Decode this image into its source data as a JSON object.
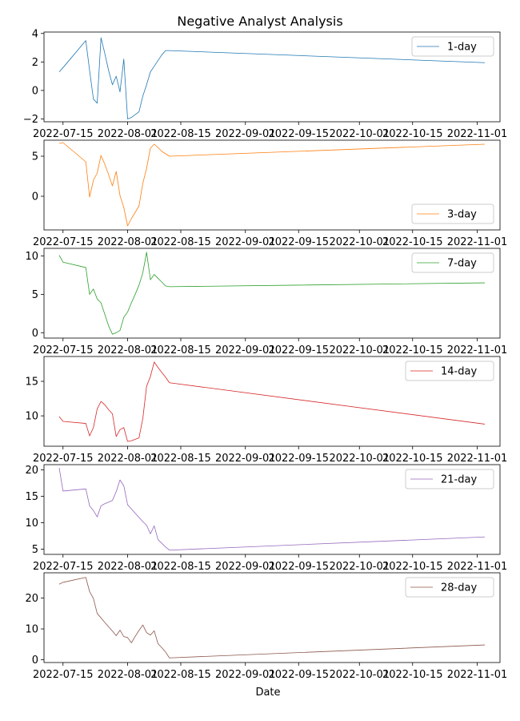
{
  "figure": {
    "title": "Negative Analyst Analysis",
    "xlabel": "Date"
  },
  "chart_data": [
    {
      "type": "line",
      "series": [
        {
          "name": "1-day",
          "color": "#1f77b4",
          "x": [
            "2022-07-14",
            "2022-07-15",
            "2022-07-21",
            "2022-07-22",
            "2022-07-23",
            "2022-07-24",
            "2022-07-25",
            "2022-07-26",
            "2022-07-27",
            "2022-07-28",
            "2022-07-29",
            "2022-07-30",
            "2022-07-31",
            "2022-08-01",
            "2022-08-02",
            "2022-08-03",
            "2022-08-04",
            "2022-08-05",
            "2022-08-06",
            "2022-08-07",
            "2022-08-08",
            "2022-08-09",
            "2022-08-10",
            "2022-08-11",
            "2022-08-12",
            "2022-11-03"
          ],
          "y": [
            1.3,
            1.6,
            3.5,
            1.4,
            -0.6,
            -0.9,
            3.7,
            2.6,
            1.4,
            0.4,
            1.0,
            -0.1,
            2.2,
            -2.0,
            -1.9,
            -1.7,
            -1.5,
            -0.4,
            0.4,
            1.3,
            1.7,
            2.1,
            2.5,
            2.8,
            2.8,
            1.95
          ]
        }
      ],
      "xticks": [
        "2022-07-15",
        "2022-08-01",
        "2022-08-15",
        "2022-09-01",
        "2022-09-15",
        "2022-10-01",
        "2022-10-15",
        "2022-11-01"
      ],
      "yticks": [
        -2,
        0,
        2,
        4
      ],
      "ylim": [
        -2.2,
        4.1
      ],
      "legend": "upper right"
    },
    {
      "type": "line",
      "series": [
        {
          "name": "3-day",
          "color": "#ff7f0e",
          "x": [
            "2022-07-14",
            "2022-07-15",
            "2022-07-21",
            "2022-07-22",
            "2022-07-23",
            "2022-07-24",
            "2022-07-25",
            "2022-07-26",
            "2022-07-27",
            "2022-07-28",
            "2022-07-29",
            "2022-07-30",
            "2022-07-31",
            "2022-08-01",
            "2022-08-02",
            "2022-08-03",
            "2022-08-04",
            "2022-08-05",
            "2022-08-06",
            "2022-08-07",
            "2022-08-08",
            "2022-08-09",
            "2022-08-10",
            "2022-08-11",
            "2022-08-12",
            "2022-11-03"
          ],
          "y": [
            6.6,
            6.7,
            4.3,
            -0.1,
            2.0,
            2.9,
            5.1,
            4.0,
            2.7,
            1.3,
            3.1,
            0.1,
            -1.4,
            -3.7,
            -2.8,
            -2.0,
            -1.2,
            1.6,
            3.5,
            6.0,
            6.5,
            6.1,
            5.6,
            5.3,
            5.0,
            6.5
          ]
        }
      ],
      "xticks": [
        "2022-07-15",
        "2022-08-01",
        "2022-08-15",
        "2022-09-01",
        "2022-09-15",
        "2022-10-01",
        "2022-10-15",
        "2022-11-01"
      ],
      "yticks": [
        0,
        5
      ],
      "ylim": [
        -4.2,
        7.0
      ],
      "legend": "lower right"
    },
    {
      "type": "line",
      "series": [
        {
          "name": "7-day",
          "color": "#2ca02c",
          "x": [
            "2022-07-14",
            "2022-07-15",
            "2022-07-21",
            "2022-07-22",
            "2022-07-23",
            "2022-07-24",
            "2022-07-25",
            "2022-07-26",
            "2022-07-27",
            "2022-07-28",
            "2022-07-29",
            "2022-07-30",
            "2022-07-31",
            "2022-08-01",
            "2022-08-02",
            "2022-08-03",
            "2022-08-04",
            "2022-08-05",
            "2022-08-06",
            "2022-08-07",
            "2022-08-08",
            "2022-08-09",
            "2022-08-10",
            "2022-08-11",
            "2022-08-12",
            "2022-11-03"
          ],
          "y": [
            10.1,
            9.2,
            8.5,
            5.0,
            5.7,
            4.4,
            3.9,
            2.4,
            0.9,
            -0.2,
            0.0,
            0.3,
            2.0,
            2.7,
            3.9,
            5.0,
            6.2,
            7.8,
            10.5,
            6.9,
            7.6,
            7.1,
            6.6,
            6.1,
            6.0,
            6.5
          ]
        }
      ],
      "xticks": [
        "2022-07-15",
        "2022-08-01",
        "2022-08-15",
        "2022-09-01",
        "2022-09-15",
        "2022-10-01",
        "2022-10-15",
        "2022-11-01"
      ],
      "yticks": [
        0,
        5,
        10
      ],
      "ylim": [
        -0.7,
        11.0
      ],
      "legend": "upper right"
    },
    {
      "type": "line",
      "series": [
        {
          "name": "14-day",
          "color": "#d62728",
          "x": [
            "2022-07-14",
            "2022-07-15",
            "2022-07-21",
            "2022-07-22",
            "2022-07-23",
            "2022-07-24",
            "2022-07-25",
            "2022-07-26",
            "2022-07-27",
            "2022-07-28",
            "2022-07-29",
            "2022-07-30",
            "2022-07-31",
            "2022-08-01",
            "2022-08-02",
            "2022-08-03",
            "2022-08-04",
            "2022-08-05",
            "2022-08-06",
            "2022-08-07",
            "2022-08-08",
            "2022-08-09",
            "2022-08-10",
            "2022-08-11",
            "2022-08-12",
            "2022-11-03"
          ],
          "y": [
            9.9,
            9.2,
            8.9,
            7.1,
            8.3,
            11.0,
            12.1,
            11.6,
            10.9,
            10.3,
            7.0,
            8.0,
            8.3,
            6.3,
            6.4,
            6.6,
            6.8,
            9.6,
            14.3,
            15.7,
            17.8,
            17.0,
            16.3,
            15.6,
            14.8,
            8.8
          ]
        }
      ],
      "xticks": [
        "2022-07-15",
        "2022-08-01",
        "2022-08-15",
        "2022-09-01",
        "2022-09-15",
        "2022-10-01",
        "2022-10-15",
        "2022-11-01"
      ],
      "yticks": [
        10,
        15
      ],
      "ylim": [
        5.6,
        18.6
      ],
      "legend": "upper right"
    },
    {
      "type": "line",
      "series": [
        {
          "name": "21-day",
          "color": "#9467bd",
          "x": [
            "2022-07-14",
            "2022-07-15",
            "2022-07-21",
            "2022-07-22",
            "2022-07-23",
            "2022-07-24",
            "2022-07-25",
            "2022-07-26",
            "2022-07-27",
            "2022-07-28",
            "2022-07-29",
            "2022-07-30",
            "2022-07-31",
            "2022-08-01",
            "2022-08-02",
            "2022-08-03",
            "2022-08-04",
            "2022-08-05",
            "2022-08-06",
            "2022-08-07",
            "2022-08-08",
            "2022-08-09",
            "2022-08-10",
            "2022-08-11",
            "2022-08-12",
            "2022-11-03"
          ],
          "y": [
            20.4,
            16.0,
            16.4,
            13.2,
            12.3,
            11.1,
            13.2,
            13.6,
            13.9,
            14.2,
            15.9,
            18.1,
            17.0,
            13.4,
            12.6,
            11.8,
            11.0,
            10.2,
            9.5,
            7.9,
            9.4,
            6.8,
            6.1,
            5.4,
            4.8,
            7.3
          ]
        }
      ],
      "xticks": [
        "2022-07-15",
        "2022-08-01",
        "2022-08-15",
        "2022-09-01",
        "2022-09-15",
        "2022-10-01",
        "2022-10-15",
        "2022-11-01"
      ],
      "yticks": [
        5,
        10,
        15,
        20
      ],
      "ylim": [
        4.0,
        21.0
      ],
      "legend": "upper right"
    },
    {
      "type": "line",
      "series": [
        {
          "name": "28-day",
          "color": "#8c564b",
          "x": [
            "2022-07-14",
            "2022-07-15",
            "2022-07-21",
            "2022-07-22",
            "2022-07-23",
            "2022-07-24",
            "2022-07-25",
            "2022-07-26",
            "2022-07-27",
            "2022-07-28",
            "2022-07-29",
            "2022-07-30",
            "2022-07-31",
            "2022-08-01",
            "2022-08-02",
            "2022-08-03",
            "2022-08-04",
            "2022-08-05",
            "2022-08-06",
            "2022-08-07",
            "2022-08-08",
            "2022-08-09",
            "2022-08-10",
            "2022-08-11",
            "2022-08-12",
            "2022-11-03"
          ],
          "y": [
            24.5,
            25.1,
            26.7,
            22.1,
            19.9,
            15.0,
            13.6,
            12.1,
            10.7,
            9.3,
            7.8,
            9.6,
            7.5,
            7.2,
            5.5,
            7.6,
            9.5,
            11.3,
            8.8,
            8.0,
            9.4,
            5.2,
            3.9,
            2.5,
            0.6,
            4.8
          ]
        }
      ],
      "xticks": [
        "2022-07-15",
        "2022-08-01",
        "2022-08-15",
        "2022-09-01",
        "2022-09-15",
        "2022-10-01",
        "2022-10-15",
        "2022-11-01"
      ],
      "yticks": [
        0,
        10,
        20
      ],
      "ylim": [
        -0.9,
        28.2
      ],
      "legend": "upper right"
    }
  ]
}
